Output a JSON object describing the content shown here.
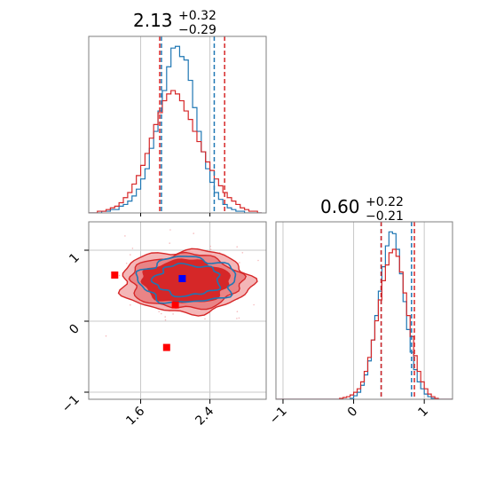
{
  "chart_data": {
    "type": "corner",
    "parameters": [
      {
        "id": "p1",
        "title_median": "2.13",
        "title_plus": "+0.32",
        "title_minus": "−0.29"
      },
      {
        "id": "p2",
        "title_median": "0.60",
        "title_plus": "+0.22",
        "title_minus": "−0.21"
      }
    ],
    "colors": {
      "blue": "#1f77b4",
      "red": "#d62728",
      "red_fill_light": "#f4b6b7",
      "red_fill_mid": "#e98486",
      "marker_red": "#ff0000",
      "marker_blue": "#0000ff"
    },
    "panels": [
      {
        "id": "hist-p1",
        "type": "histogram",
        "xlim": [
          1.0,
          3.05
        ],
        "grid": true,
        "bin_edges": [
          1.0,
          1.05,
          1.1,
          1.15,
          1.2,
          1.25,
          1.3,
          1.35,
          1.4,
          1.45,
          1.5,
          1.55,
          1.6,
          1.65,
          1.7,
          1.75,
          1.8,
          1.85,
          1.9,
          1.95,
          2.0,
          2.05,
          2.1,
          2.15,
          2.2,
          2.25,
          2.3,
          2.35,
          2.4,
          2.45,
          2.5,
          2.55,
          2.6,
          2.65,
          2.7,
          2.75,
          2.8,
          2.85,
          2.9,
          2.95,
          3.0
        ],
        "series": [
          {
            "name": "",
            "color": "blue",
            "counts": [
              0,
              0,
              0,
              0.01,
              0.01,
              0.02,
              0.02,
              0.04,
              0.05,
              0.07,
              0.1,
              0.14,
              0.2,
              0.26,
              0.38,
              0.48,
              0.6,
              0.72,
              0.86,
              0.97,
              0.98,
              0.92,
              0.9,
              0.78,
              0.62,
              0.48,
              0.36,
              0.26,
              0.18,
              0.12,
              0.08,
              0.05,
              0.03,
              0.02,
              0.01,
              0.01,
              0,
              0,
              0,
              0
            ]
          },
          {
            "name": "",
            "color": "red",
            "counts": [
              0,
              0,
              0.01,
              0.01,
              0.02,
              0.03,
              0.04,
              0.06,
              0.09,
              0.12,
              0.17,
              0.22,
              0.28,
              0.35,
              0.44,
              0.52,
              0.59,
              0.66,
              0.7,
              0.72,
              0.7,
              0.66,
              0.6,
              0.55,
              0.48,
              0.42,
              0.36,
              0.3,
              0.25,
              0.2,
              0.16,
              0.12,
              0.09,
              0.07,
              0.05,
              0.03,
              0.02,
              0.01,
              0.01,
              0
            ]
          }
        ],
        "quantile_lines": [
          {
            "color": "blue",
            "values": [
              1.84,
              2.45
            ]
          },
          {
            "color": "red",
            "values": [
              1.82,
              2.57
            ]
          }
        ]
      },
      {
        "id": "hist-p2",
        "type": "histogram",
        "xlim": [
          -1.1,
          1.4
        ],
        "grid": true,
        "bin_edges": [
          -1.1,
          -1.05,
          -1.0,
          -0.95,
          -0.9,
          -0.85,
          -0.8,
          -0.75,
          -0.7,
          -0.65,
          -0.6,
          -0.55,
          -0.5,
          -0.45,
          -0.4,
          -0.35,
          -0.3,
          -0.25,
          -0.2,
          -0.15,
          -0.1,
          -0.05,
          0.0,
          0.05,
          0.1,
          0.15,
          0.2,
          0.25,
          0.3,
          0.35,
          0.4,
          0.45,
          0.5,
          0.55,
          0.6,
          0.65,
          0.7,
          0.75,
          0.8,
          0.85,
          0.9,
          0.95,
          1.0,
          1.05,
          1.1,
          1.15,
          1.2,
          1.25,
          1.3,
          1.35,
          1.4
        ],
        "series": [
          {
            "name": "",
            "color": "blue",
            "counts": [
              0,
              0,
              0,
              0,
              0,
              0,
              0,
              0,
              0,
              0,
              0,
              0,
              0,
              0,
              0,
              0,
              0,
              0,
              0,
              0,
              0,
              0.005,
              0.02,
              0.04,
              0.08,
              0.14,
              0.22,
              0.34,
              0.48,
              0.62,
              0.76,
              0.88,
              0.96,
              0.95,
              0.86,
              0.72,
              0.56,
              0.4,
              0.27,
              0.17,
              0.1,
              0.06,
              0.03,
              0.015,
              0.005,
              0,
              0,
              0,
              0,
              0
            ]
          },
          {
            "name": "",
            "color": "red",
            "counts": [
              0,
              0,
              0,
              0,
              0,
              0,
              0,
              0,
              0,
              0,
              0,
              0,
              0,
              0,
              0,
              0,
              0,
              0,
              0.005,
              0.01,
              0.015,
              0.025,
              0.04,
              0.06,
              0.1,
              0.16,
              0.24,
              0.34,
              0.45,
              0.57,
              0.68,
              0.77,
              0.84,
              0.86,
              0.82,
              0.73,
              0.61,
              0.48,
              0.36,
              0.25,
              0.16,
              0.1,
              0.06,
              0.03,
              0.015,
              0.005,
              0,
              0,
              0,
              0
            ]
          }
        ],
        "quantile_lines": [
          {
            "color": "blue",
            "values": [
              0.39,
              0.82
            ]
          },
          {
            "color": "red",
            "values": [
              0.39,
              0.86
            ]
          }
        ]
      },
      {
        "id": "scatter-p1-p2",
        "type": "2d-density",
        "xlim": [
          1.0,
          3.05
        ],
        "ylim": [
          -1.1,
          1.4
        ],
        "grid": true,
        "red_contours": [
          {
            "level": "outer",
            "cx": 2.12,
            "cy": 0.56,
            "rx": 0.75,
            "ry": 0.44
          },
          {
            "level": "mid",
            "cx": 2.12,
            "cy": 0.56,
            "rx": 0.64,
            "ry": 0.38
          },
          {
            "level": "inner",
            "cx": 2.12,
            "cy": 0.56,
            "rx": 0.5,
            "ry": 0.3
          }
        ],
        "blue_contours": [
          {
            "level": "outer",
            "cx": 2.14,
            "cy": 0.58,
            "rx": 0.56,
            "ry": 0.32
          },
          {
            "level": "inner",
            "cx": 2.14,
            "cy": 0.58,
            "rx": 0.38,
            "ry": 0.22
          }
        ],
        "markers": [
          {
            "color": "marker_red",
            "x": 1.3,
            "y": 0.65
          },
          {
            "color": "marker_red",
            "x": 2.0,
            "y": 0.23
          },
          {
            "color": "marker_red",
            "x": 1.9,
            "y": -0.37
          },
          {
            "color": "marker_blue",
            "x": 2.08,
            "y": 0.6
          }
        ]
      }
    ],
    "ticks": {
      "p1_ticks": [
        {
          "value": 1.6,
          "label": "1.6"
        },
        {
          "value": 2.4,
          "label": "2.4"
        }
      ],
      "p2_ticks": [
        {
          "value": -1,
          "label": "−1"
        },
        {
          "value": 0,
          "label": "0"
        },
        {
          "value": 1,
          "label": "1"
        }
      ]
    }
  }
}
